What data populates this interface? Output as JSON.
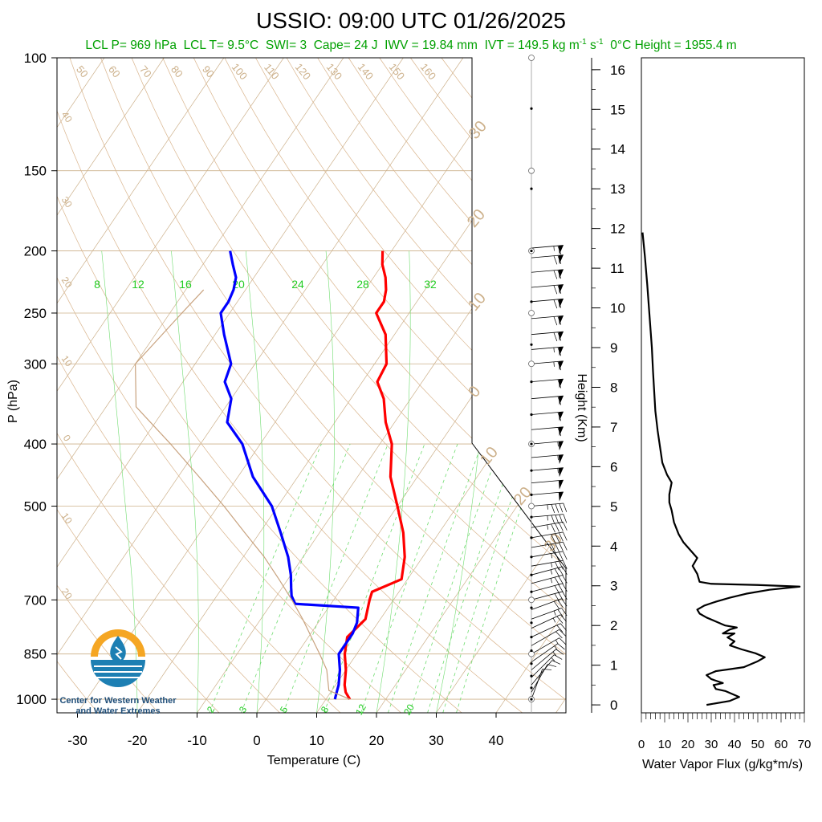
{
  "chart_data": [
    {
      "type": "line",
      "title": "USSIO: 09:00 UTC 01/26/2025",
      "subtitle": {
        "lcl_p": "LCL P= 969 hPa",
        "lcl_t": "LCL T= 9.5°C",
        "swi": "SWI= 3",
        "cape": "Cape= 24 J",
        "iwv": "IWV = 19.84 mm",
        "ivt_prefix": "IVT = 149.5 kg m",
        "ivt_exp1": "-1",
        "ivt_mid": " s",
        "ivt_exp2": "-1",
        "freezing": "0°C Height = 1955.4 m"
      },
      "xlabel": "Temperature (C)",
      "ylabel": "P (hPa)",
      "xticks": [
        "-30",
        "-20",
        "-10",
        "0",
        "10",
        "20",
        "30",
        "40"
      ],
      "yticks": [
        "100",
        "150",
        "200",
        "250",
        "300",
        "400",
        "500",
        "700",
        "850",
        "1000"
      ],
      "xlim": [
        -34,
        46
      ],
      "ylim": [
        1050,
        100
      ],
      "log_pressure_axis": true,
      "mixing_ratio_labels": [
        "8",
        "12",
        "16",
        "20",
        "24",
        "28",
        "32"
      ],
      "mixing_ratio_low_labels": [
        "2",
        "3",
        "5",
        "8",
        "12",
        "20"
      ],
      "dry_adiabat_labels": [
        "50",
        "60",
        "70",
        "80",
        "90",
        "100",
        "110",
        "120",
        "130",
        "140",
        "150",
        "160"
      ],
      "moist_adiabat_labels_left": [
        "40",
        "30",
        "20",
        "10",
        "0",
        "10",
        "20"
      ],
      "moist_adiabat_labels_right": [
        "30",
        "20",
        "10",
        "0",
        "10",
        "20",
        "30"
      ],
      "series": [
        {
          "name": "Temperature",
          "color": "#ff0000",
          "points": [
            [
              14.0,
              1000
            ],
            [
              12.5,
              975
            ],
            [
              11.5,
              950
            ],
            [
              10.0,
              900
            ],
            [
              8.0,
              850
            ],
            [
              6.5,
              800
            ],
            [
              7.5,
              750
            ],
            [
              6.0,
              700
            ],
            [
              5.5,
              680
            ],
            [
              9.0,
              650
            ],
            [
              7.0,
              600
            ],
            [
              4.0,
              550
            ],
            [
              0.0,
              500
            ],
            [
              -4.5,
              450
            ],
            [
              -8.0,
              400
            ],
            [
              -11.5,
              370
            ],
            [
              -14.5,
              340
            ],
            [
              -17.5,
              320
            ],
            [
              -18.0,
              300
            ],
            [
              -21.5,
              270
            ],
            [
              -25.5,
              250
            ],
            [
              -25.5,
              240
            ],
            [
              -26.5,
              230
            ],
            [
              -28.0,
              220
            ],
            [
              -30.0,
              210
            ],
            [
              -31.5,
              200
            ]
          ]
        },
        {
          "name": "Dewpoint",
          "color": "#0000ff",
          "points": [
            [
              11.5,
              1000
            ],
            [
              11.0,
              975
            ],
            [
              10.5,
              950
            ],
            [
              9.0,
              900
            ],
            [
              7.0,
              850
            ],
            [
              7.0,
              820
            ],
            [
              7.0,
              790
            ],
            [
              6.5,
              760
            ],
            [
              5.0,
              720
            ],
            [
              -6.0,
              710
            ],
            [
              -7.5,
              690
            ],
            [
              -8.5,
              670
            ],
            [
              -10.0,
              640
            ],
            [
              -12.5,
              600
            ],
            [
              -16.5,
              550
            ],
            [
              -21.0,
              500
            ],
            [
              -27.5,
              450
            ],
            [
              -33.0,
              400
            ],
            [
              -38.0,
              370
            ],
            [
              -40.0,
              340
            ],
            [
              -43.0,
              320
            ],
            [
              -44.0,
              300
            ],
            [
              -48.5,
              270
            ],
            [
              -51.5,
              250
            ],
            [
              -51.5,
              240
            ],
            [
              -52.0,
              230
            ],
            [
              -53.0,
              220
            ],
            [
              -55.0,
              210
            ],
            [
              -57.0,
              200
            ]
          ]
        },
        {
          "name": "Parcel",
          "color": "#c8a27e",
          "points": [
            [
              14.0,
              1000
            ],
            [
              9.5,
              969
            ],
            [
              6.8,
              900
            ],
            [
              3.8,
              850
            ],
            [
              0.5,
              800
            ],
            [
              -3.0,
              750
            ],
            [
              -7.0,
              700
            ],
            [
              -11.5,
              650
            ],
            [
              -16.5,
              600
            ],
            [
              -22.5,
              550
            ],
            [
              -29.0,
              500
            ],
            [
              -36.5,
              450
            ],
            [
              -45.0,
              400
            ],
            [
              -55.0,
              350
            ],
            [
              -60.0,
              300
            ],
            [
              -58.0,
              250
            ],
            [
              -57.0,
              230
            ]
          ]
        }
      ],
      "wind_profile": {
        "description_free": true,
        "levels_hpa": [
          1000,
          975,
          950,
          925,
          900,
          875,
          850,
          825,
          800,
          775,
          750,
          725,
          700,
          680,
          660,
          640,
          620,
          600,
          580,
          560,
          540,
          520,
          500,
          480,
          460,
          440,
          420,
          400,
          380,
          360,
          340,
          320,
          300,
          285,
          270,
          255,
          240,
          228,
          216,
          205,
          198
        ],
        "speeds_kt": [
          10,
          12,
          12,
          15,
          15,
          15,
          15,
          20,
          20,
          25,
          25,
          30,
          30,
          30,
          35,
          35,
          35,
          35,
          40,
          40,
          45,
          45,
          45,
          50,
          50,
          55,
          55,
          55,
          60,
          60,
          60,
          60,
          65,
          65,
          70,
          70,
          70,
          70,
          70,
          70,
          65
        ],
        "directions_deg": [
          200,
          210,
          220,
          225,
          230,
          235,
          240,
          240,
          245,
          245,
          250,
          250,
          255,
          255,
          255,
          255,
          260,
          260,
          260,
          260,
          260,
          265,
          265,
          265,
          265,
          265,
          265,
          265,
          265,
          265,
          265,
          265,
          265,
          265,
          265,
          265,
          265,
          265,
          265,
          265,
          265
        ]
      }
    },
    {
      "type": "line",
      "xlabel": "Water Vapor Flux (g/kg*m/s)",
      "ylabel": "Height (Km)",
      "xticks": [
        "0",
        "10",
        "20",
        "30",
        "40",
        "50",
        "60",
        "70"
      ],
      "yticks": [
        "0",
        "1",
        "2",
        "3",
        "4",
        "5",
        "6",
        "7",
        "8",
        "9",
        "10",
        "11",
        "12",
        "13",
        "14",
        "15",
        "16"
      ],
      "xlim": [
        0,
        70
      ],
      "ylim": [
        -0.2,
        16.3
      ],
      "series": [
        {
          "name": "Water Vapor Flux",
          "color": "#000000",
          "points": [
            [
              28,
              0.0
            ],
            [
              38,
              0.1
            ],
            [
              42,
              0.2
            ],
            [
              36,
              0.35
            ],
            [
              32,
              0.4
            ],
            [
              31,
              0.5
            ],
            [
              35,
              0.55
            ],
            [
              30,
              0.65
            ],
            [
              28,
              0.75
            ],
            [
              32,
              0.85
            ],
            [
              38,
              0.9
            ],
            [
              44,
              0.95
            ],
            [
              50,
              1.1
            ],
            [
              53,
              1.2
            ],
            [
              49,
              1.3
            ],
            [
              43,
              1.4
            ],
            [
              38,
              1.5
            ],
            [
              40,
              1.6
            ],
            [
              37,
              1.7
            ],
            [
              40,
              1.8
            ],
            [
              35,
              1.8
            ],
            [
              38,
              1.9
            ],
            [
              41,
              1.95
            ],
            [
              36,
              2.0
            ],
            [
              32,
              2.1
            ],
            [
              28,
              2.2
            ],
            [
              25,
              2.3
            ],
            [
              24,
              2.4
            ],
            [
              27,
              2.5
            ],
            [
              32,
              2.6
            ],
            [
              38,
              2.7
            ],
            [
              45,
              2.8
            ],
            [
              55,
              2.9
            ],
            [
              68,
              2.98
            ],
            [
              50,
              3.02
            ],
            [
              30,
              3.05
            ],
            [
              25,
              3.1
            ],
            [
              24,
              3.3
            ],
            [
              22,
              3.5
            ],
            [
              24,
              3.7
            ],
            [
              21,
              3.9
            ],
            [
              18,
              4.1
            ],
            [
              16,
              4.3
            ],
            [
              14,
              4.6
            ],
            [
              13,
              4.9
            ],
            [
              12,
              5.1
            ],
            [
              12,
              5.3
            ],
            [
              13,
              5.6
            ],
            [
              11,
              5.8
            ],
            [
              9,
              6.1
            ],
            [
              8,
              6.5
            ],
            [
              7,
              6.9
            ],
            [
              6,
              7.4
            ],
            [
              5.5,
              7.9
            ],
            [
              5,
              8.4
            ],
            [
              4.5,
              9.0
            ],
            [
              3.5,
              9.8
            ],
            [
              2.5,
              10.6
            ],
            [
              1.5,
              11.3
            ],
            [
              0.5,
              11.9
            ]
          ]
        }
      ]
    }
  ],
  "logo": {
    "line1": "Center for Western Weather",
    "line2": "and Water Extremes"
  },
  "colors": {
    "dry_adiabat": "#d9b48c",
    "moist_adiabat": "#d9b48c",
    "mixing_ratio": "#6fdc6f",
    "isotherm_label": "#ccb08a",
    "temperature": "#ff0000",
    "dewpoint": "#0000ff",
    "subtitle": "#00a000",
    "logo_orange": "#f5a623",
    "logo_blue": "#1d7fb3"
  }
}
